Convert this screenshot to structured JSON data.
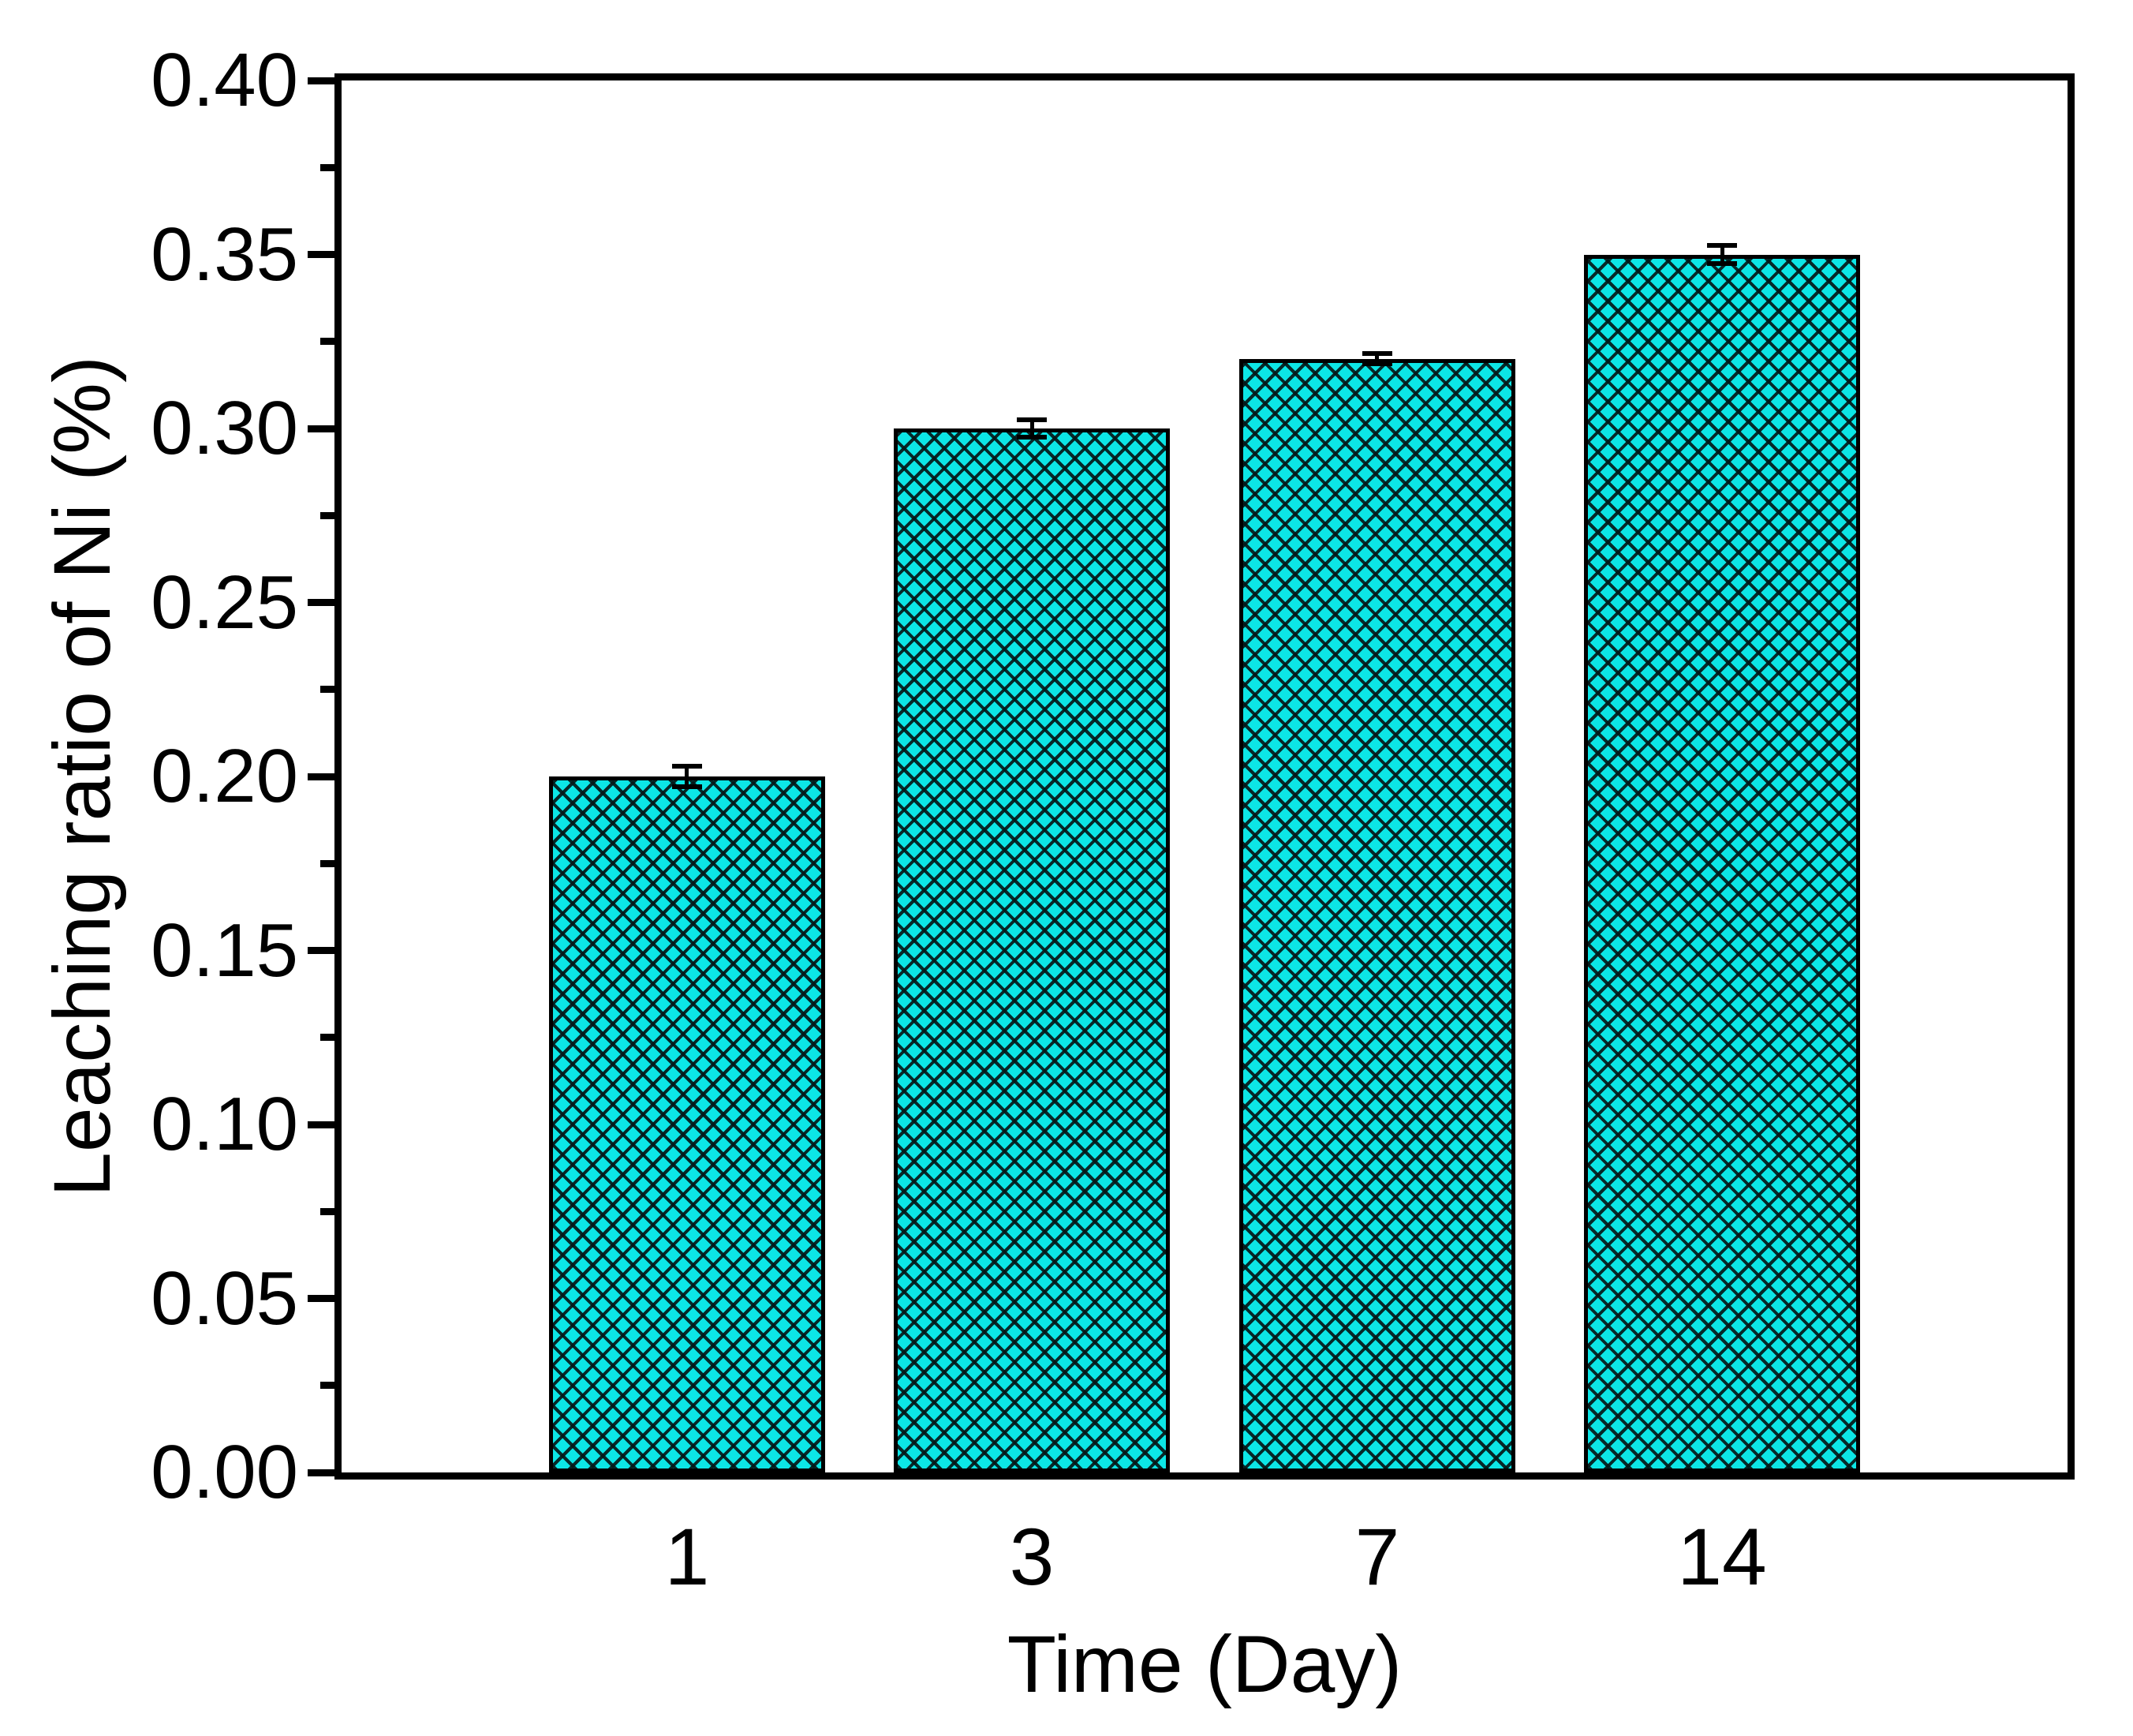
{
  "figure": {
    "background_color": "#ffffff",
    "axis_color": "#000000"
  },
  "chart_data": {
    "type": "bar",
    "title": "",
    "xlabel": "Time (Day)",
    "ylabel": "Leaching ratio of Ni (%)",
    "categories": [
      "1",
      "3",
      "7",
      "14"
    ],
    "values": [
      0.2,
      0.3,
      0.32,
      0.35
    ],
    "errors": [
      0.003,
      0.0025,
      0.0015,
      0.0025
    ],
    "ylim": [
      0.0,
      0.4
    ],
    "ytick_step": 0.05,
    "ytick_labels": [
      "0.00",
      "0.05",
      "0.10",
      "0.15",
      "0.20",
      "0.25",
      "0.30",
      "0.35",
      "0.40"
    ],
    "minor_tick_step": 0.025,
    "grid": false,
    "legend": null,
    "bar_color": "#0ce6e6",
    "bar_edge_color": "#000000",
    "bar_hatch": "diagonal-crosshatch",
    "error_bar_color": "#000000"
  }
}
